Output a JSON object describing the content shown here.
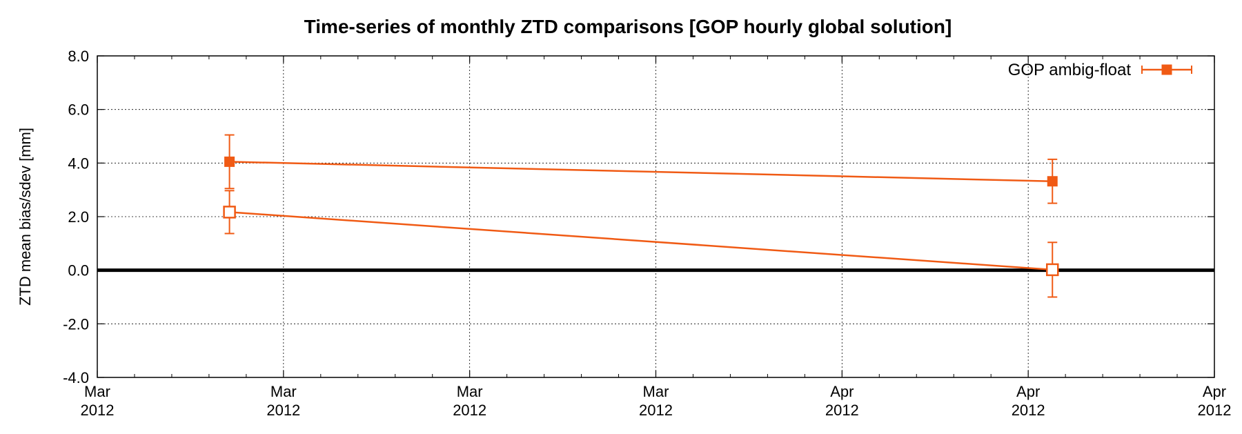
{
  "chart_data": {
    "type": "line",
    "title": "Time-series of monthly ZTD comparisons [GOP hourly global solution]",
    "ylabel": "ZTD mean bias/sdev [mm]",
    "xlabel": "",
    "ylim": [
      -4.0,
      8.0
    ],
    "y_ticks": [
      "8.0",
      "6.0",
      "4.0",
      "2.0",
      "0.0",
      "-2.0",
      "-4.0"
    ],
    "y_tick_values": [
      8,
      6,
      4,
      2,
      0,
      -2,
      -4
    ],
    "x_ticks": [
      {
        "month": "Mar",
        "year": "2012"
      },
      {
        "month": "Mar",
        "year": "2012"
      },
      {
        "month": "Mar",
        "year": "2012"
      },
      {
        "month": "Mar",
        "year": "2012"
      },
      {
        "month": "Apr",
        "year": "2012"
      },
      {
        "month": "Apr",
        "year": "2012"
      },
      {
        "month": "Apr",
        "year": "2012"
      }
    ],
    "x_tick_index": [
      0,
      1,
      2,
      3,
      4,
      5,
      6
    ],
    "grid": true,
    "legend_position": "top-right",
    "color": "#f05a14",
    "series": [
      {
        "name": "GOP ambig-float",
        "marker": "filled-square",
        "x": [
          0.71,
          5.13
        ],
        "y": [
          4.05,
          3.32
        ],
        "yerr": [
          1.0,
          0.82
        ]
      },
      {
        "marker": "open-square",
        "x": [
          0.71,
          5.13
        ],
        "y": [
          2.17,
          0.02
        ],
        "yerr": [
          0.8,
          1.02
        ]
      }
    ]
  }
}
